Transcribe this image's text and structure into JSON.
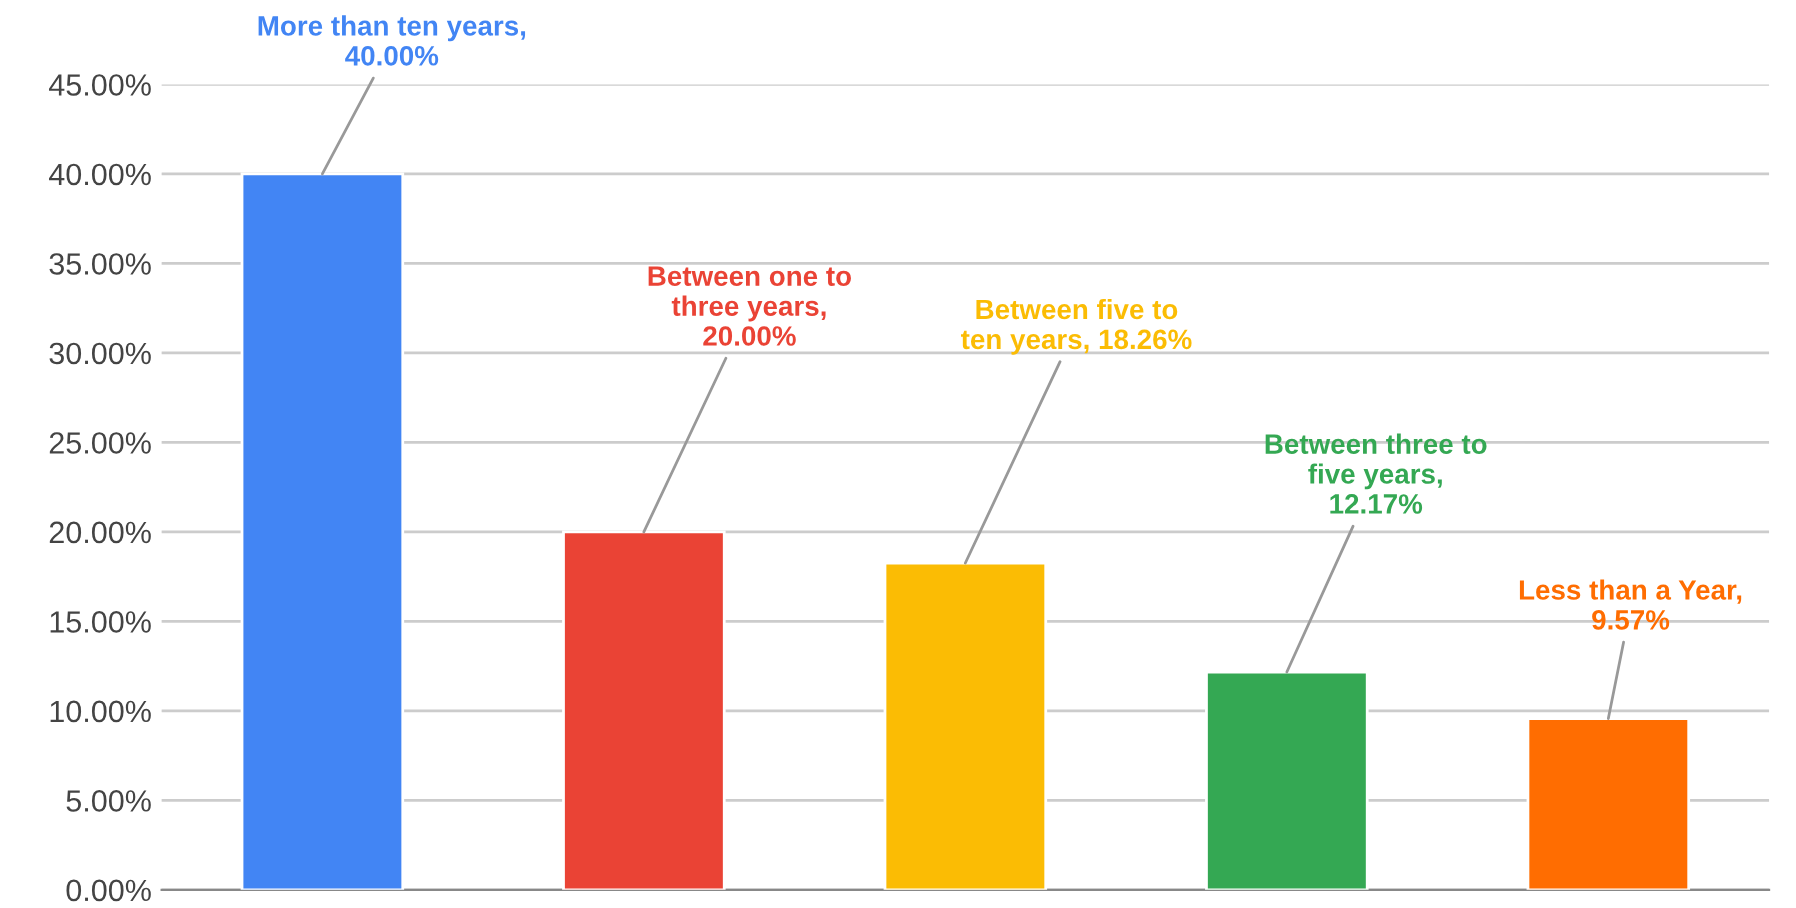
{
  "chart_data": {
    "type": "bar",
    "categories": [
      null,
      null,
      null,
      null,
      null
    ],
    "values": [
      40.0,
      20.0,
      18.26,
      12.17,
      9.57
    ],
    "colors": [
      "#4285f4",
      "#ea4335",
      "#fbbc04",
      "#34a853",
      "#ff6d01"
    ],
    "value_labels": [
      "More than ten years,\n40.00%",
      "Between one to\nthree years,\n20.00%",
      "Between five to\nten years, 18.26%",
      "Between three to\nfive years,\n12.17%",
      "Less than a Year,\n9.57%"
    ],
    "ylim": [
      0,
      45
    ],
    "yticks": [
      {
        "value": 0,
        "label": "0.00%"
      },
      {
        "value": 5,
        "label": "5.00%"
      },
      {
        "value": 10,
        "label": "10.00%"
      },
      {
        "value": 15,
        "label": "15.00%"
      },
      {
        "value": 20,
        "label": "20.00%"
      },
      {
        "value": 25,
        "label": "25.00%"
      },
      {
        "value": 30,
        "label": "30.00%"
      },
      {
        "value": 35,
        "label": "35.00%"
      },
      {
        "value": 40,
        "label": "40.00%"
      },
      {
        "value": 45,
        "label": "45.00%"
      }
    ],
    "grid": "y"
  }
}
